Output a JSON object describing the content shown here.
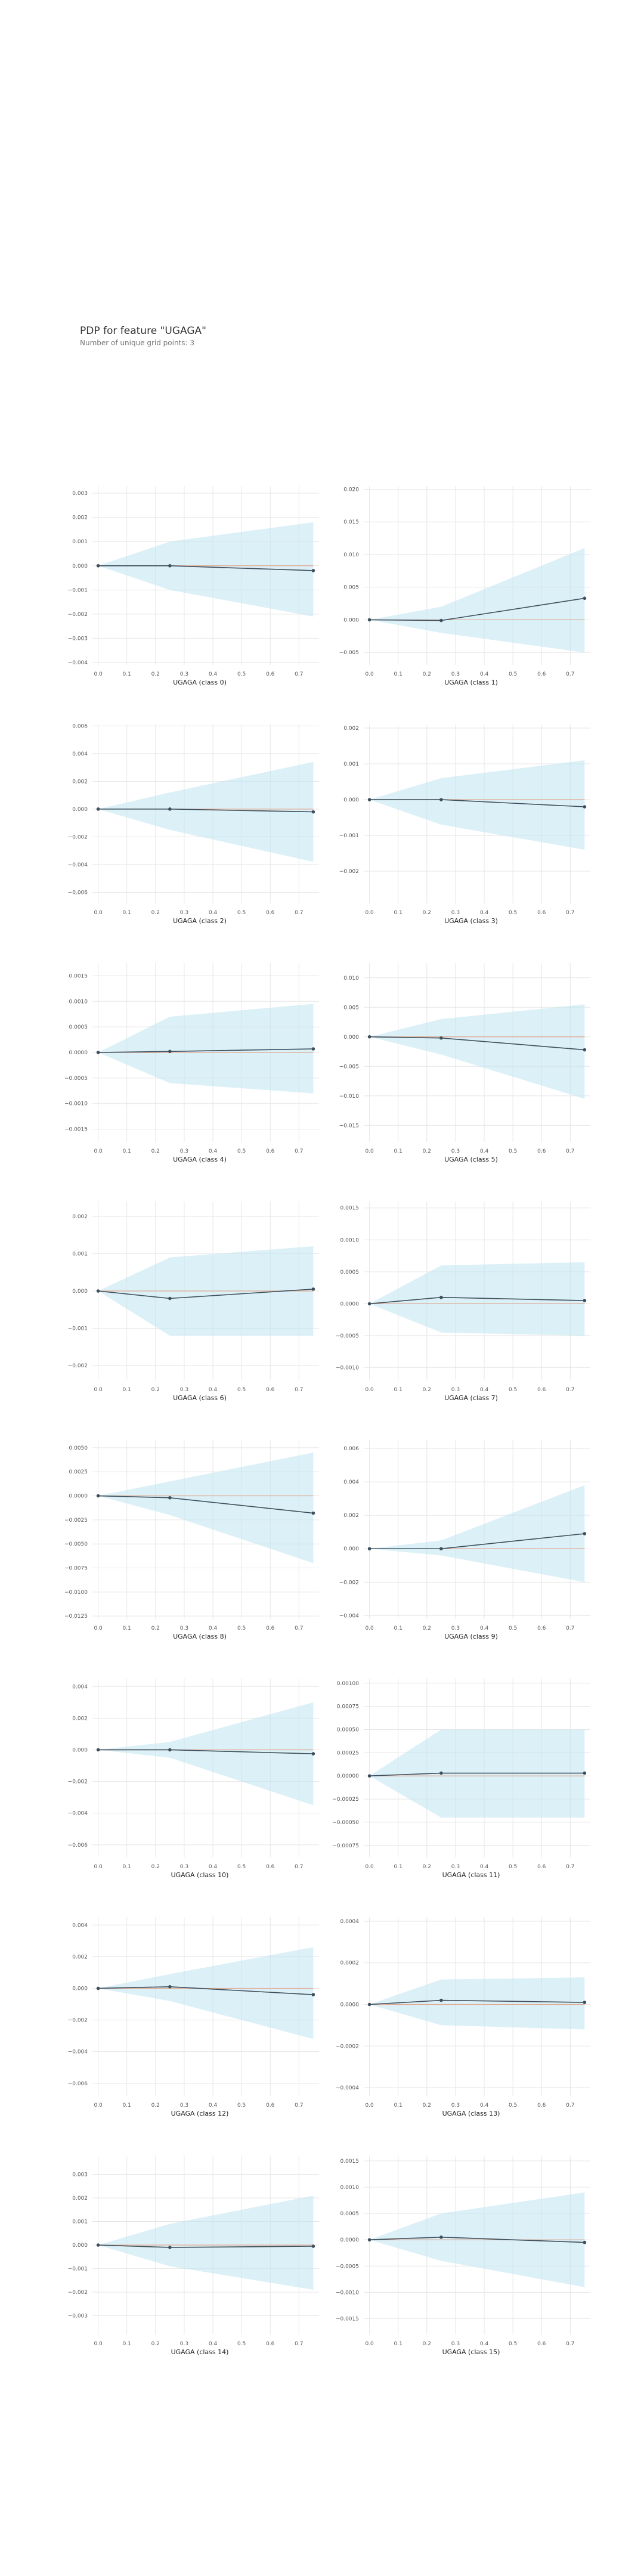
{
  "header": {
    "title": "PDP for feature \"UGAGA\"",
    "subtitle": "Number of unique grid points: 3"
  },
  "colors": {
    "band": "#bfe4f0",
    "line": "#3d4f5c",
    "zero": "#e0a890",
    "grid": "#e6e6e6"
  },
  "chart_data": [
    {
      "type": "line",
      "xlabel": "UGAGA (class 0)",
      "x": [
        0,
        0.25,
        0.75
      ],
      "y": [
        0,
        0,
        -0.0002
      ],
      "lower": [
        0,
        -0.001,
        -0.0021
      ],
      "upper": [
        0,
        0.001,
        0.0018
      ],
      "ylim": [
        -0.0041,
        0.0033
      ],
      "yticks": [
        -0.004,
        -0.003,
        -0.002,
        -0.001,
        0,
        0.001,
        0.002,
        0.003
      ],
      "yticklabels": [
        "−0.004",
        "−0.003",
        "−0.002",
        "−0.001",
        "0.000",
        "0.001",
        "0.002",
        "0.003"
      ],
      "xticks": [
        0,
        0.1,
        0.2,
        0.3,
        0.4,
        0.5,
        0.6,
        0.7
      ],
      "xticklabels": [
        "0.0",
        "0.1",
        "0.2",
        "0.3",
        "0.4",
        "0.5",
        "0.6",
        "0.7"
      ],
      "grid": true
    },
    {
      "type": "line",
      "xlabel": "UGAGA (class 1)",
      "x": [
        0,
        0.25,
        0.75
      ],
      "y": [
        0,
        -0.0001,
        0.0033
      ],
      "lower": [
        0,
        -0.002,
        -0.005
      ],
      "upper": [
        0,
        0.002,
        0.011
      ],
      "ylim": [
        -0.0069,
        0.0205
      ],
      "yticks": [
        -0.005,
        0,
        0.005,
        0.01,
        0.015,
        0.02
      ],
      "yticklabels": [
        "−0.005",
        "0.000",
        "0.005",
        "0.010",
        "0.015",
        "0.020"
      ],
      "xticks": [
        0,
        0.1,
        0.2,
        0.3,
        0.4,
        0.5,
        0.6,
        0.7
      ],
      "xticklabels": [
        "0.0",
        "0.1",
        "0.2",
        "0.3",
        "0.4",
        "0.5",
        "0.6",
        "0.7"
      ],
      "grid": true
    },
    {
      "type": "line",
      "xlabel": "UGAGA (class 2)",
      "x": [
        0,
        0.25,
        0.75
      ],
      "y": [
        0,
        0,
        -0.0002
      ],
      "lower": [
        0,
        -0.0015,
        -0.0038
      ],
      "upper": [
        0,
        0.0012,
        0.0034
      ],
      "ylim": [
        -0.0068,
        0.0061
      ],
      "yticks": [
        -0.006,
        -0.004,
        -0.002,
        0,
        0.002,
        0.004,
        0.006
      ],
      "yticklabels": [
        "−0.006",
        "−0.004",
        "−0.002",
        "0.000",
        "0.002",
        "0.004",
        "0.006"
      ],
      "xticks": [
        0,
        0.1,
        0.2,
        0.3,
        0.4,
        0.5,
        0.6,
        0.7
      ],
      "xticklabels": [
        "0.0",
        "0.1",
        "0.2",
        "0.3",
        "0.4",
        "0.5",
        "0.6",
        "0.7"
      ],
      "grid": true
    },
    {
      "type": "line",
      "xlabel": "UGAGA (class 3)",
      "x": [
        0,
        0.25,
        0.75
      ],
      "y": [
        0,
        0,
        -0.0002
      ],
      "lower": [
        0,
        -0.0007,
        -0.0014
      ],
      "upper": [
        0,
        0.0006,
        0.0011
      ],
      "ylim": [
        -0.0029,
        0.0021
      ],
      "yticks": [
        -0.002,
        -0.001,
        0,
        0.001,
        0.002
      ],
      "yticklabels": [
        "−0.002",
        "−0.001",
        "0.000",
        "0.001",
        "0.002"
      ],
      "xticks": [
        0,
        0.1,
        0.2,
        0.3,
        0.4,
        0.5,
        0.6,
        0.7
      ],
      "xticklabels": [
        "0.0",
        "0.1",
        "0.2",
        "0.3",
        "0.4",
        "0.5",
        "0.6",
        "0.7"
      ],
      "grid": true
    },
    {
      "type": "line",
      "xlabel": "UGAGA (class 4)",
      "x": [
        0,
        0.25,
        0.75
      ],
      "y": [
        0,
        2e-05,
        7e-05
      ],
      "lower": [
        0,
        -0.0006,
        -0.0008
      ],
      "upper": [
        0,
        0.0007,
        0.00095
      ],
      "ylim": [
        -0.00175,
        0.00175
      ],
      "yticks": [
        -0.0015,
        -0.001,
        -0.0005,
        0,
        0.0005,
        0.001,
        0.0015
      ],
      "yticklabels": [
        "−0.0015",
        "−0.0010",
        "−0.0005",
        "0.0000",
        "0.0005",
        "0.0010",
        "0.0015"
      ],
      "xticks": [
        0,
        0.1,
        0.2,
        0.3,
        0.4,
        0.5,
        0.6,
        0.7
      ],
      "xticklabels": [
        "0.0",
        "0.1",
        "0.2",
        "0.3",
        "0.4",
        "0.5",
        "0.6",
        "0.7"
      ],
      "grid": true
    },
    {
      "type": "line",
      "xlabel": "UGAGA (class 5)",
      "x": [
        0,
        0.25,
        0.75
      ],
      "y": [
        0,
        -0.0002,
        -0.0022
      ],
      "lower": [
        0,
        -0.003,
        -0.0105
      ],
      "upper": [
        0,
        0.003,
        0.0055
      ],
      "ylim": [
        -0.0178,
        0.0125
      ],
      "yticks": [
        -0.015,
        -0.01,
        -0.005,
        0,
        0.005,
        0.01
      ],
      "yticklabels": [
        "−0.015",
        "−0.010",
        "−0.005",
        "0.000",
        "0.005",
        "0.010"
      ],
      "xticks": [
        0,
        0.1,
        0.2,
        0.3,
        0.4,
        0.5,
        0.6,
        0.7
      ],
      "xticklabels": [
        "0.0",
        "0.1",
        "0.2",
        "0.3",
        "0.4",
        "0.5",
        "0.6",
        "0.7"
      ],
      "grid": true
    },
    {
      "type": "line",
      "xlabel": "UGAGA (class 6)",
      "x": [
        0,
        0.25,
        0.75
      ],
      "y": [
        0,
        -0.0002,
        5e-05
      ],
      "lower": [
        0,
        -0.0012,
        -0.0012
      ],
      "upper": [
        0,
        0.0009,
        0.0012
      ],
      "ylim": [
        -0.0024,
        0.0024
      ],
      "yticks": [
        -0.002,
        -0.001,
        0,
        0.001,
        0.002
      ],
      "yticklabels": [
        "−0.002",
        "−0.001",
        "0.000",
        "0.001",
        "0.002"
      ],
      "xticks": [
        0,
        0.1,
        0.2,
        0.3,
        0.4,
        0.5,
        0.6,
        0.7
      ],
      "xticklabels": [
        "0.0",
        "0.1",
        "0.2",
        "0.3",
        "0.4",
        "0.5",
        "0.6",
        "0.7"
      ],
      "grid": true
    },
    {
      "type": "line",
      "xlabel": "UGAGA (class 7)",
      "x": [
        0,
        0.25,
        0.75
      ],
      "y": [
        0,
        0.0001,
        5e-05
      ],
      "lower": [
        0,
        -0.00045,
        -0.0005
      ],
      "upper": [
        0,
        0.0006,
        0.00065
      ],
      "ylim": [
        -0.0012,
        0.0016
      ],
      "yticks": [
        -0.001,
        -0.0005,
        0,
        0.0005,
        0.001,
        0.0015
      ],
      "yticklabels": [
        "−0.0010",
        "−0.0005",
        "0.0000",
        "0.0005",
        "0.0010",
        "0.0015"
      ],
      "xticks": [
        0,
        0.1,
        0.2,
        0.3,
        0.4,
        0.5,
        0.6,
        0.7
      ],
      "xticklabels": [
        "0.0",
        "0.1",
        "0.2",
        "0.3",
        "0.4",
        "0.5",
        "0.6",
        "0.7"
      ],
      "grid": true
    },
    {
      "type": "line",
      "xlabel": "UGAGA (class 8)",
      "x": [
        0,
        0.25,
        0.75
      ],
      "y": [
        0,
        -0.0002,
        -0.0018
      ],
      "lower": [
        0,
        -0.002,
        -0.007
      ],
      "upper": [
        0,
        0.0015,
        0.0045
      ],
      "ylim": [
        -0.0128,
        0.0058
      ],
      "yticks": [
        -0.0125,
        -0.01,
        -0.0075,
        -0.005,
        -0.0025,
        0,
        0.0025,
        0.005
      ],
      "yticklabels": [
        "−0.0125",
        "−0.0100",
        "−0.0075",
        "−0.0050",
        "−0.0025",
        "0.0000",
        "0.0025",
        "0.0050"
      ],
      "xticks": [
        0,
        0.1,
        0.2,
        0.3,
        0.4,
        0.5,
        0.6,
        0.7
      ],
      "xticklabels": [
        "0.0",
        "0.1",
        "0.2",
        "0.3",
        "0.4",
        "0.5",
        "0.6",
        "0.7"
      ],
      "grid": true
    },
    {
      "type": "line",
      "xlabel": "UGAGA (class 9)",
      "x": [
        0,
        0.25,
        0.75
      ],
      "y": [
        0,
        0,
        0.0009
      ],
      "lower": [
        0,
        -0.0004,
        -0.002
      ],
      "upper": [
        0,
        0.0005,
        0.0038
      ],
      "ylim": [
        -0.0042,
        0.0065
      ],
      "yticks": [
        -0.004,
        -0.002,
        0,
        0.002,
        0.004,
        0.006
      ],
      "yticklabels": [
        "−0.004",
        "−0.002",
        "0.000",
        "0.002",
        "0.004",
        "0.006"
      ],
      "xticks": [
        0,
        0.1,
        0.2,
        0.3,
        0.4,
        0.5,
        0.6,
        0.7
      ],
      "xticklabels": [
        "0.0",
        "0.1",
        "0.2",
        "0.3",
        "0.4",
        "0.5",
        "0.6",
        "0.7"
      ],
      "grid": true
    },
    {
      "type": "line",
      "xlabel": "UGAGA (class 10)",
      "x": [
        0,
        0.25,
        0.75
      ],
      "y": [
        0,
        0,
        -0.00025
      ],
      "lower": [
        0,
        -0.0005,
        -0.0035
      ],
      "upper": [
        0,
        0.0005,
        0.003
      ],
      "ylim": [
        -0.0068,
        0.0045
      ],
      "yticks": [
        -0.006,
        -0.004,
        -0.002,
        0,
        0.002,
        0.004
      ],
      "yticklabels": [
        "−0.006",
        "−0.004",
        "−0.002",
        "0.000",
        "0.002",
        "0.004"
      ],
      "xticks": [
        0,
        0.1,
        0.2,
        0.3,
        0.4,
        0.5,
        0.6,
        0.7
      ],
      "xticklabels": [
        "0.0",
        "0.1",
        "0.2",
        "0.3",
        "0.4",
        "0.5",
        "0.6",
        "0.7"
      ],
      "grid": true
    },
    {
      "type": "line",
      "xlabel": "UGAGA (class 11)",
      "x": [
        0,
        0.25,
        0.75
      ],
      "y": [
        0,
        3e-05,
        3e-05
      ],
      "lower": [
        0,
        -0.00045,
        -0.00045
      ],
      "upper": [
        0,
        0.0005,
        0.0005
      ],
      "ylim": [
        -0.00088,
        0.00105
      ],
      "yticks": [
        -0.00075,
        -0.0005,
        -0.00025,
        0,
        0.00025,
        0.0005,
        0.00075,
        0.001
      ],
      "yticklabels": [
        "−0.00075",
        "−0.00050",
        "−0.00025",
        "0.00000",
        "0.00025",
        "0.00050",
        "0.00075",
        "0.00100"
      ],
      "xticks": [
        0,
        0.1,
        0.2,
        0.3,
        0.4,
        0.5,
        0.6,
        0.7
      ],
      "xticklabels": [
        "0.0",
        "0.1",
        "0.2",
        "0.3",
        "0.4",
        "0.5",
        "0.6",
        "0.7"
      ],
      "grid": true
    },
    {
      "type": "line",
      "xlabel": "UGAGA (class 12)",
      "x": [
        0,
        0.25,
        0.75
      ],
      "y": [
        0,
        0.0001,
        -0.0004
      ],
      "lower": [
        0,
        -0.0008,
        -0.0032
      ],
      "upper": [
        0,
        0.0009,
        0.0026
      ],
      "ylim": [
        -0.0068,
        0.0045
      ],
      "yticks": [
        -0.006,
        -0.004,
        -0.002,
        0,
        0.002,
        0.004
      ],
      "yticklabels": [
        "−0.006",
        "−0.004",
        "−0.002",
        "0.000",
        "0.002",
        "0.004"
      ],
      "xticks": [
        0,
        0.1,
        0.2,
        0.3,
        0.4,
        0.5,
        0.6,
        0.7
      ],
      "xticklabels": [
        "0.0",
        "0.1",
        "0.2",
        "0.3",
        "0.4",
        "0.5",
        "0.6",
        "0.7"
      ],
      "grid": true
    },
    {
      "type": "line",
      "xlabel": "UGAGA (class 13)",
      "x": [
        0,
        0.25,
        0.75
      ],
      "y": [
        0,
        2e-05,
        1e-05
      ],
      "lower": [
        0,
        -0.0001,
        -0.00012
      ],
      "upper": [
        0,
        0.00012,
        0.00013
      ],
      "ylim": [
        -0.00044,
        0.00042
      ],
      "yticks": [
        -0.0004,
        -0.0002,
        0,
        0.0002,
        0.0004
      ],
      "yticklabels": [
        "−0.0004",
        "−0.0002",
        "0.0000",
        "0.0002",
        "0.0004"
      ],
      "xticks": [
        0,
        0.1,
        0.2,
        0.3,
        0.4,
        0.5,
        0.6,
        0.7
      ],
      "xticklabels": [
        "0.0",
        "0.1",
        "0.2",
        "0.3",
        "0.4",
        "0.5",
        "0.6",
        "0.7"
      ],
      "grid": true
    },
    {
      "type": "line",
      "xlabel": "UGAGA (class 14)",
      "x": [
        0,
        0.25,
        0.75
      ],
      "y": [
        0,
        -0.0001,
        -5e-05
      ],
      "lower": [
        0,
        -0.0009,
        -0.0019
      ],
      "upper": [
        0,
        0.0009,
        0.0021
      ],
      "ylim": [
        -0.0038,
        0.0038
      ],
      "yticks": [
        -0.003,
        -0.002,
        -0.001,
        0,
        0.001,
        0.002,
        0.003
      ],
      "yticklabels": [
        "−0.003",
        "−0.002",
        "−0.001",
        "0.000",
        "0.001",
        "0.002",
        "0.003"
      ],
      "xticks": [
        0,
        0.1,
        0.2,
        0.3,
        0.4,
        0.5,
        0.6,
        0.7
      ],
      "xticklabels": [
        "0.0",
        "0.1",
        "0.2",
        "0.3",
        "0.4",
        "0.5",
        "0.6",
        "0.7"
      ],
      "grid": true
    },
    {
      "type": "line",
      "xlabel": "UGAGA (class 15)",
      "x": [
        0,
        0.25,
        0.75
      ],
      "y": [
        0,
        5e-05,
        -5e-05
      ],
      "lower": [
        0,
        -0.0004,
        -0.0009
      ],
      "upper": [
        0,
        0.0005,
        0.0009
      ],
      "ylim": [
        -0.0018,
        0.0016
      ],
      "yticks": [
        -0.0015,
        -0.001,
        -0.0005,
        0,
        0.0005,
        0.001,
        0.0015
      ],
      "yticklabels": [
        "−0.0015",
        "−0.0010",
        "−0.0005",
        "0.0000",
        "0.0005",
        "0.0010",
        "0.0015"
      ],
      "xticks": [
        0,
        0.1,
        0.2,
        0.3,
        0.4,
        0.5,
        0.6,
        0.7
      ],
      "xticklabels": [
        "0.0",
        "0.1",
        "0.2",
        "0.3",
        "0.4",
        "0.5",
        "0.6",
        "0.7"
      ],
      "grid": true
    }
  ]
}
